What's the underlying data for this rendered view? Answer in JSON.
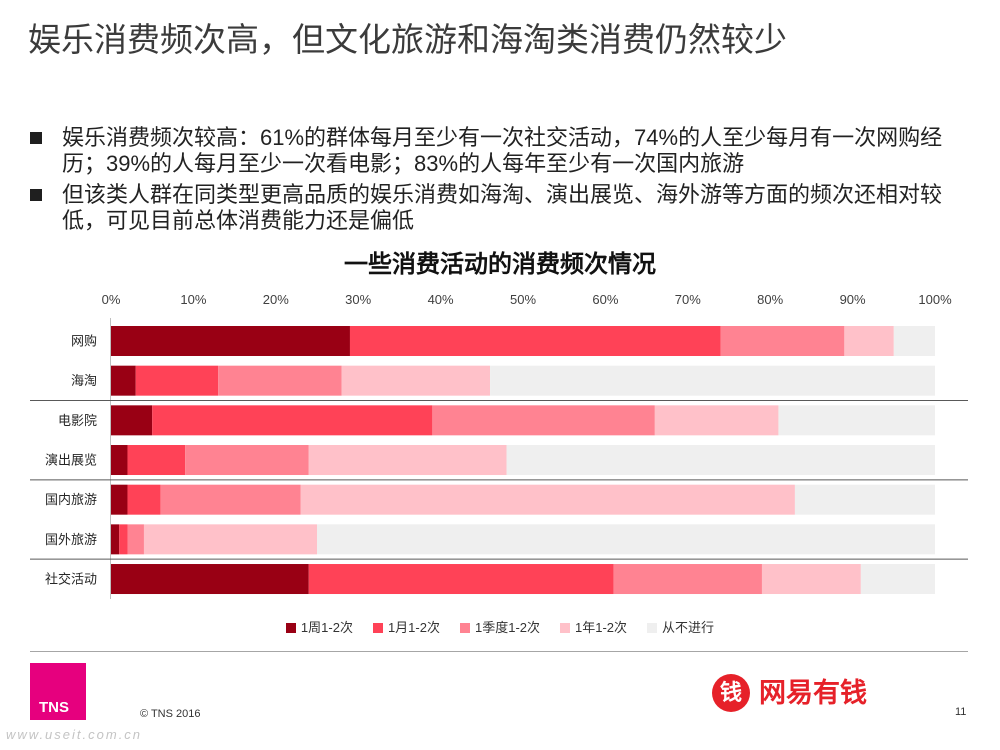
{
  "slide": {
    "title": "娱乐消费频次高，但文化旅游和海淘类消费仍然较少",
    "bullets": [
      {
        "lines": [
          "娱乐消费频次较高：61%的群体每月至少有一次社交活动，74%的人至少每月有一次网购经",
          "历；39%的人每月至少一次看电影；83%的人每年至少有一次国内旅游"
        ]
      },
      {
        "lines": [
          "但该类人群在同类型更高品质的娱乐消费如海淘、演出展览、海外游等方面的频次还相对较",
          "低，可见目前总体消费能力还是偏低"
        ]
      }
    ]
  },
  "chart_data": {
    "type": "bar",
    "orientation": "horizontal",
    "stacked": true,
    "title": "一些消费活动的消费频次情况",
    "categories": [
      "网购",
      "海淘",
      "电影院",
      "演出展览",
      "国内旅游",
      "国外旅游",
      "社交活动"
    ],
    "series": [
      {
        "name": "1周1-2次",
        "color": "#990014",
        "values": [
          29,
          3,
          5,
          2,
          2,
          1,
          24
        ]
      },
      {
        "name": "1月1-2次",
        "color": "#ff4257",
        "values": [
          45,
          10,
          34,
          7,
          4,
          1,
          37
        ]
      },
      {
        "name": "1季度1-2次",
        "color": "#ff8392",
        "values": [
          15,
          15,
          27,
          15,
          17,
          2,
          18
        ]
      },
      {
        "name": "1年1-2次",
        "color": "#ffc1c9",
        "values": [
          6,
          18,
          15,
          24,
          60,
          21,
          12
        ]
      },
      {
        "name": "从不进行",
        "color": "#efefef",
        "values": [
          5,
          54,
          19,
          52,
          17,
          75,
          9
        ]
      }
    ],
    "xlim": [
      0,
      100
    ],
    "x_ticks": [
      0,
      10,
      20,
      30,
      40,
      50,
      60,
      70,
      80,
      90,
      100
    ],
    "x_tick_labels": [
      "0%",
      "10%",
      "20%",
      "30%",
      "40%",
      "50%",
      "60%",
      "70%",
      "80%",
      "90%",
      "100%"
    ],
    "xlabel": "",
    "ylabel": "",
    "grid": false,
    "legend": "bottom"
  },
  "footer": {
    "tns_logo_text": "TNS",
    "copyright": "© TNS 2016",
    "brand_badge_char": "钱",
    "brand_name": "网易有钱",
    "page_number": "11",
    "watermark": "www.useit.com.cn"
  },
  "colors": {
    "tns_magenta": "#e6007e",
    "brand_red": "#e62129"
  }
}
